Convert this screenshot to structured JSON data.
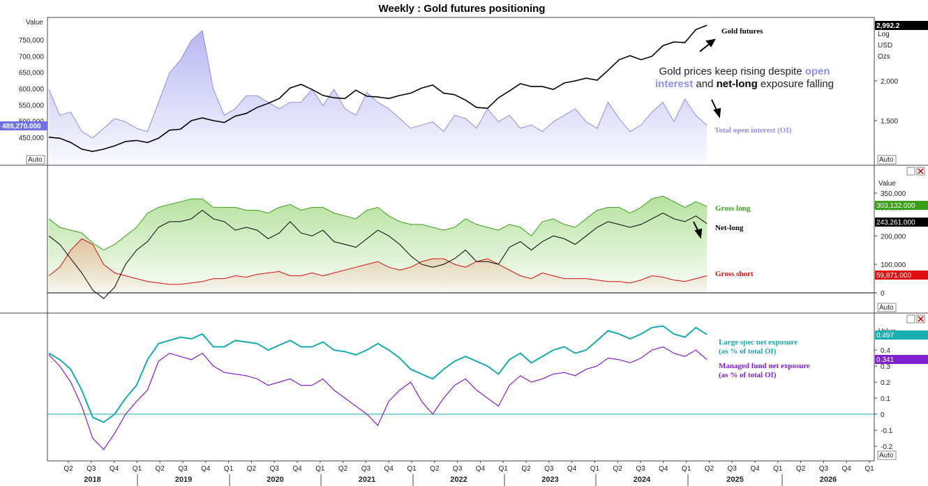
{
  "title": "Weekly : Gold futures positioning",
  "colors": {
    "price": "#000000",
    "oi_line": "#8f8fe0",
    "oi_fill": "#9f9ff0",
    "long_line": "#3aa01a",
    "long_fill": "#a8dc8c",
    "net_line": "#000000",
    "short_line": "#d01010",
    "short_fill": "#e8c0a0",
    "large_spec": "#18aaaa",
    "managed": "#8020d0",
    "zero_line": "#18aaaa",
    "tag_oi_bg": "#7070e8",
    "tag_long_bg": "#3aa01a",
    "tag_net_bg": "#000000",
    "tag_short_bg": "#e01010",
    "tag_ls_bg": "#18b0b0",
    "tag_mf_bg": "#8020d0"
  },
  "panels": {
    "p1": {
      "left_axis_title": "Value",
      "left_ticks": [
        "750,000",
        "700,000",
        "650,000",
        "600,000",
        "550,000",
        "500,000",
        "450,000"
      ],
      "right_ticks": [
        "2,000",
        "1,500"
      ],
      "right_scale_labels": [
        "Log",
        "USD",
        "Ozs"
      ],
      "price_tag": "2,992.2",
      "oi_tag": "489,270.000",
      "auto_label": "Auto",
      "annotations": {
        "gold_futures": "Gold futures",
        "total_oi": "Total open interest (OI)",
        "note_1": "Gold prices keep rising despite",
        "note_hl_1": "open",
        "note_hl_2": "interest",
        "note_2": "and",
        "note_bold": "net-long",
        "note_3": "exposure falling"
      }
    },
    "p2": {
      "axis_title": "Value",
      "ticks": [
        "350,000",
        "300,000",
        "200,000",
        "100,000",
        "0"
      ],
      "tags": {
        "gross_long": "303,132.000",
        "net_long": "243,261.000",
        "gross_short": "59,871.000"
      },
      "auto_label": "Auto",
      "annotations": {
        "gross_long": "Gross long",
        "net_long": "Net-long",
        "gross_short": "Gross short"
      }
    },
    "p3": {
      "axis_title": "Value",
      "ticks": [
        "0.4",
        "0.3",
        "0.2",
        "0.1",
        "0",
        "-0.1",
        "-0.2"
      ],
      "tags": {
        "large_spec": "0.497",
        "managed": "0.341"
      },
      "auto_label": "Auto",
      "annotations": {
        "large_spec_1": "Large spec net exposure",
        "large_spec_2": "(as % of total OI)",
        "managed_1": "Managed fund net exposure",
        "managed_2": "(as % of total OI)"
      }
    }
  },
  "x_axis": {
    "quarters": [
      "Q2",
      "Q3",
      "Q4",
      "Q1",
      "Q2",
      "Q3",
      "Q4",
      "Q1",
      "Q2",
      "Q3",
      "Q4",
      "Q1",
      "Q2",
      "Q3",
      "Q4",
      "Q1",
      "Q2",
      "Q3",
      "Q4",
      "Q1",
      "Q2",
      "Q3",
      "Q4",
      "Q1",
      "Q2",
      "Q3",
      "Q4",
      "Q1",
      "Q2",
      "Q3",
      "Q4",
      "Q1",
      "Q2",
      "Q3",
      "Q4",
      "Q1"
    ],
    "years": [
      "2018",
      "2019",
      "2020",
      "2021",
      "2022",
      "2023",
      "2024",
      "2025",
      "2026"
    ]
  },
  "chart_data": [
    {
      "type": "line",
      "panel": "top",
      "title": "Weekly : Gold futures positioning",
      "x_start": "2018-03",
      "x_end": "2025-04",
      "series": [
        {
          "name": "Gold futures",
          "axis": "right",
          "scale": "log",
          "values": [
            1330,
            1320,
            1280,
            1220,
            1200,
            1220,
            1250,
            1290,
            1300,
            1280,
            1320,
            1400,
            1410,
            1500,
            1530,
            1500,
            1480,
            1550,
            1580,
            1650,
            1700,
            1760,
            1900,
            1950,
            1880,
            1800,
            1770,
            1760,
            1870,
            1790,
            1780,
            1760,
            1800,
            1830,
            1900,
            1940,
            1830,
            1810,
            1740,
            1650,
            1640,
            1770,
            1860,
            1960,
            1920,
            1920,
            1880,
            1970,
            2000,
            2040,
            2010,
            2160,
            2330,
            2400,
            2330,
            2390,
            2580,
            2650,
            2640,
            2900,
            2992.2
          ]
        },
        {
          "name": "Total open interest (OI)",
          "axis": "left",
          "values": [
            600000,
            520000,
            530000,
            470000,
            450000,
            480000,
            510000,
            500000,
            480000,
            470000,
            560000,
            650000,
            690000,
            750000,
            780000,
            600000,
            520000,
            540000,
            580000,
            580000,
            560000,
            540000,
            560000,
            560000,
            600000,
            550000,
            600000,
            540000,
            520000,
            590000,
            560000,
            540000,
            510000,
            480000,
            490000,
            500000,
            470000,
            520000,
            510000,
            480000,
            540000,
            500000,
            520000,
            480000,
            490000,
            470000,
            500000,
            520000,
            540000,
            500000,
            480000,
            560000,
            510000,
            470000,
            490000,
            530000,
            560000,
            500000,
            570000,
            520000,
            489270
          ]
        }
      ],
      "y_left_ticks": [
        450000,
        500000,
        550000,
        600000,
        650000,
        700000,
        750000
      ],
      "y_right_ticks": [
        1500,
        2000
      ]
    },
    {
      "type": "area",
      "panel": "middle",
      "x_start": "2018-03",
      "x_end": "2025-04",
      "series": [
        {
          "name": "Gross long",
          "values": [
            260000,
            230000,
            220000,
            210000,
            175000,
            150000,
            170000,
            200000,
            230000,
            280000,
            300000,
            310000,
            320000,
            330000,
            330000,
            300000,
            300000,
            300000,
            290000,
            290000,
            280000,
            300000,
            310000,
            290000,
            300000,
            300000,
            280000,
            270000,
            260000,
            290000,
            300000,
            270000,
            250000,
            240000,
            240000,
            230000,
            220000,
            230000,
            260000,
            240000,
            230000,
            220000,
            240000,
            230000,
            200000,
            250000,
            260000,
            240000,
            230000,
            260000,
            290000,
            300000,
            300000,
            280000,
            300000,
            330000,
            340000,
            320000,
            300000,
            320000,
            303132
          ]
        },
        {
          "name": "Net-long",
          "values": [
            200000,
            170000,
            120000,
            70000,
            10000,
            -20000,
            20000,
            100000,
            150000,
            180000,
            230000,
            250000,
            250000,
            260000,
            290000,
            260000,
            250000,
            220000,
            230000,
            220000,
            190000,
            210000,
            250000,
            210000,
            200000,
            220000,
            180000,
            170000,
            160000,
            190000,
            220000,
            200000,
            170000,
            130000,
            100000,
            90000,
            100000,
            120000,
            150000,
            110000,
            110000,
            100000,
            160000,
            180000,
            150000,
            180000,
            200000,
            190000,
            170000,
            200000,
            230000,
            250000,
            240000,
            230000,
            240000,
            260000,
            280000,
            260000,
            250000,
            270000,
            243261
          ]
        },
        {
          "name": "Gross short",
          "values": [
            60000,
            90000,
            150000,
            190000,
            170000,
            100000,
            70000,
            60000,
            50000,
            40000,
            35000,
            30000,
            30000,
            35000,
            40000,
            50000,
            50000,
            60000,
            55000,
            65000,
            70000,
            75000,
            60000,
            60000,
            70000,
            60000,
            70000,
            80000,
            90000,
            100000,
            110000,
            90000,
            80000,
            90000,
            110000,
            120000,
            120000,
            100000,
            90000,
            110000,
            120000,
            100000,
            80000,
            60000,
            50000,
            70000,
            60000,
            50000,
            50000,
            50000,
            45000,
            40000,
            40000,
            35000,
            45000,
            60000,
            55000,
            45000,
            40000,
            50000,
            59871
          ]
        }
      ],
      "y_ticks": [
        0,
        100000,
        200000,
        300000,
        350000
      ]
    },
    {
      "type": "line",
      "panel": "bottom",
      "x_start": "2018-03",
      "x_end": "2025-04",
      "series": [
        {
          "name": "Large spec net exposure (as % of total OI)",
          "values": [
            0.38,
            0.34,
            0.28,
            0.15,
            -0.02,
            -0.05,
            0.0,
            0.1,
            0.18,
            0.34,
            0.44,
            0.46,
            0.48,
            0.47,
            0.5,
            0.42,
            0.42,
            0.46,
            0.45,
            0.44,
            0.4,
            0.43,
            0.46,
            0.42,
            0.42,
            0.45,
            0.4,
            0.39,
            0.37,
            0.4,
            0.44,
            0.4,
            0.35,
            0.28,
            0.25,
            0.22,
            0.28,
            0.33,
            0.36,
            0.33,
            0.3,
            0.25,
            0.34,
            0.38,
            0.32,
            0.36,
            0.4,
            0.42,
            0.38,
            0.4,
            0.46,
            0.52,
            0.5,
            0.47,
            0.5,
            0.54,
            0.55,
            0.5,
            0.48,
            0.54,
            0.497
          ]
        },
        {
          "name": "Managed fund net exposure (as % of total OI)",
          "values": [
            0.37,
            0.3,
            0.2,
            0.05,
            -0.15,
            -0.22,
            -0.12,
            0.0,
            0.08,
            0.15,
            0.33,
            0.38,
            0.36,
            0.34,
            0.38,
            0.3,
            0.26,
            0.25,
            0.24,
            0.22,
            0.18,
            0.2,
            0.22,
            0.18,
            0.18,
            0.22,
            0.15,
            0.1,
            0.05,
            0.0,
            -0.07,
            0.08,
            0.15,
            0.2,
            0.08,
            0.0,
            0.1,
            0.18,
            0.22,
            0.15,
            0.1,
            0.05,
            0.18,
            0.24,
            0.2,
            0.22,
            0.25,
            0.26,
            0.24,
            0.28,
            0.3,
            0.35,
            0.34,
            0.32,
            0.35,
            0.4,
            0.42,
            0.38,
            0.36,
            0.4,
            0.341
          ]
        }
      ],
      "y_ticks": [
        -0.2,
        -0.1,
        0,
        0.1,
        0.2,
        0.3,
        0.4
      ]
    }
  ]
}
